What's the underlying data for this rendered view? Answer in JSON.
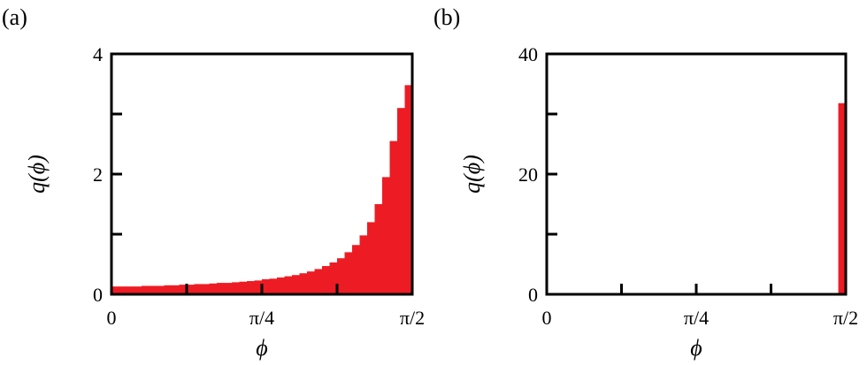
{
  "chart_data": [
    {
      "panel_label": "(a)",
      "type": "bar",
      "bar_color": "#ed1c24",
      "xlabel": "ϕ",
      "ylabel": "q(ϕ)",
      "xlim": [
        0,
        1.5708
      ],
      "ylim": [
        0,
        4
      ],
      "x_ticks": [
        {
          "value": 0,
          "label": "0"
        },
        {
          "value": 0.7854,
          "label": "π/4"
        },
        {
          "value": 1.5708,
          "label": "π/2"
        }
      ],
      "x_minor_ticks": [
        0.3927,
        1.1781
      ],
      "y_ticks": [
        {
          "value": 0,
          "label": "0"
        },
        {
          "value": 2,
          "label": "2"
        },
        {
          "value": 4,
          "label": "4"
        }
      ],
      "y_minor_ticks": [
        1,
        3
      ],
      "n_bins": 40,
      "values": [
        0.13,
        0.13,
        0.13,
        0.13,
        0.14,
        0.14,
        0.14,
        0.15,
        0.15,
        0.16,
        0.16,
        0.17,
        0.17,
        0.18,
        0.19,
        0.19,
        0.2,
        0.21,
        0.22,
        0.23,
        0.25,
        0.26,
        0.28,
        0.3,
        0.32,
        0.35,
        0.38,
        0.42,
        0.47,
        0.53,
        0.6,
        0.7,
        0.82,
        0.98,
        1.2,
        1.5,
        1.95,
        2.55,
        3.1,
        3.48
      ]
    },
    {
      "panel_label": "(b)",
      "type": "bar",
      "bar_color": "#ed1c24",
      "xlabel": "ϕ",
      "ylabel": "q(ϕ)",
      "xlim": [
        0,
        1.5708
      ],
      "ylim": [
        0,
        40
      ],
      "x_ticks": [
        {
          "value": 0,
          "label": "0"
        },
        {
          "value": 0.7854,
          "label": "π/4"
        },
        {
          "value": 1.5708,
          "label": "π/2"
        }
      ],
      "x_minor_ticks": [
        0.3927,
        1.1781
      ],
      "y_ticks": [
        {
          "value": 0,
          "label": "0"
        },
        {
          "value": 20,
          "label": "20"
        },
        {
          "value": 40,
          "label": "40"
        }
      ],
      "y_minor_ticks": [
        10,
        30
      ],
      "n_bins": 40,
      "values": [
        0,
        0,
        0,
        0,
        0,
        0,
        0,
        0,
        0,
        0,
        0,
        0,
        0,
        0,
        0,
        0,
        0,
        0,
        0,
        0,
        0,
        0,
        0,
        0,
        0,
        0,
        0,
        0,
        0,
        0,
        0,
        0,
        0,
        0,
        0,
        0,
        0,
        0,
        0,
        31.8
      ]
    }
  ]
}
